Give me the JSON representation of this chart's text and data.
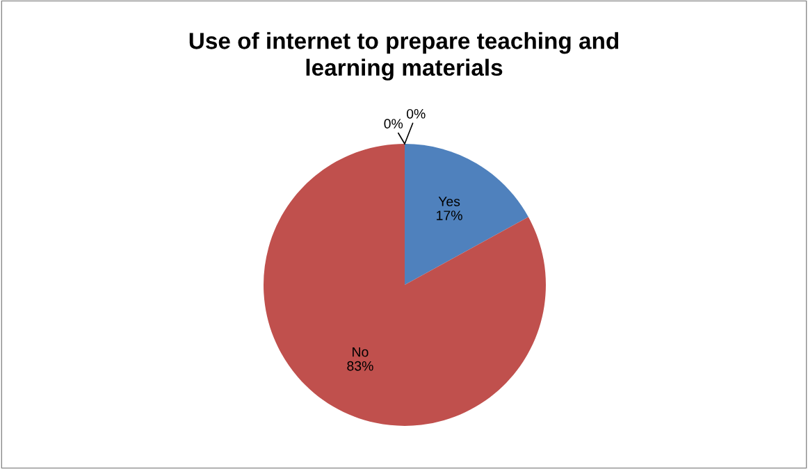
{
  "chart_data": {
    "type": "pie",
    "title": "Use of internet to prepare teaching and\nlearning materials",
    "categories": [
      "Yes",
      "No",
      null,
      null
    ],
    "values": [
      17,
      83,
      0,
      0
    ],
    "colors": [
      "#4f81bd",
      "#c0504d",
      "#9bbb59",
      "#8064a2"
    ],
    "value_labels": [
      "17%",
      "83%",
      "0%",
      "0%"
    ],
    "legend": false
  }
}
